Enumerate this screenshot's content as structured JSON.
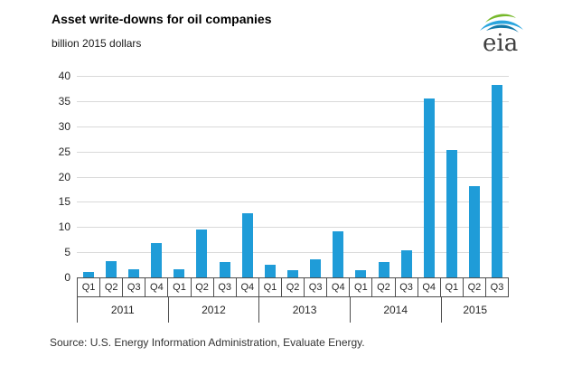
{
  "header": {
    "title": "Asset write-downs for oil companies",
    "subtitle": "billion 2015 dollars"
  },
  "logo": {
    "name": "eia-logo",
    "text": "eia"
  },
  "source": {
    "text": "Source:  U.S. Energy Information Administration, Evaluate Energy."
  },
  "colors": {
    "bar": "#1f9cd8",
    "grid": "#d9d9d9",
    "axis_line": "#4d4d4d",
    "text": "#262626",
    "logo_green": "#76b82a",
    "logo_blue": "#2aa5de"
  },
  "chart_data": {
    "type": "bar",
    "title": "Asset write-downs for oil companies",
    "ylabel": "billion 2015 dollars",
    "ylim": [
      0,
      40
    ],
    "yticks": [
      0,
      5,
      10,
      15,
      20,
      25,
      30,
      35,
      40
    ],
    "grid": true,
    "legend_position": "none",
    "groups": [
      {
        "year": "2011",
        "quarters": [
          "Q1",
          "Q2",
          "Q3",
          "Q4"
        ],
        "values": [
          1.0,
          3.2,
          1.6,
          6.9
        ]
      },
      {
        "year": "2012",
        "quarters": [
          "Q1",
          "Q2",
          "Q3",
          "Q4"
        ],
        "values": [
          1.6,
          9.5,
          3.0,
          12.7
        ]
      },
      {
        "year": "2013",
        "quarters": [
          "Q1",
          "Q2",
          "Q3",
          "Q4"
        ],
        "values": [
          2.6,
          1.5,
          3.6,
          9.2
        ]
      },
      {
        "year": "2014",
        "quarters": [
          "Q1",
          "Q2",
          "Q3",
          "Q4"
        ],
        "values": [
          1.4,
          3.0,
          5.4,
          35.6
        ]
      },
      {
        "year": "2015",
        "quarters": [
          "Q1",
          "Q2",
          "Q3"
        ],
        "values": [
          25.3,
          18.1,
          38.2
        ]
      }
    ]
  }
}
